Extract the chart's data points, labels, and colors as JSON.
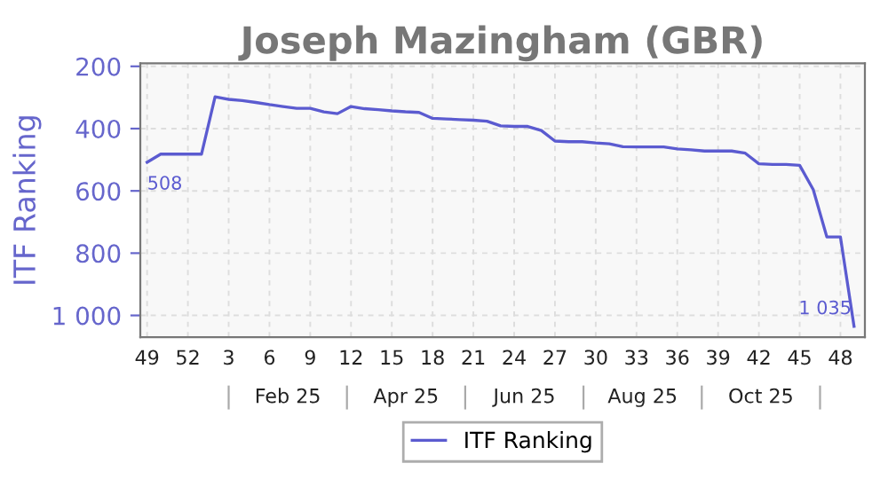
{
  "chart_data": {
    "type": "line",
    "title": "Joseph Mazingham (GBR)",
    "ylabel": "ITF Ranking",
    "categories": [
      "49",
      null,
      null,
      "52",
      null,
      null,
      "3",
      null,
      null,
      "6",
      null,
      null,
      "9",
      null,
      null,
      "12",
      null,
      null,
      "15",
      null,
      null,
      "18",
      null,
      null,
      "21",
      null,
      null,
      "24",
      null,
      null,
      "27",
      null,
      null,
      "30",
      null,
      null,
      "33",
      null,
      null,
      "36",
      null,
      null,
      "39",
      null,
      null,
      "42",
      null,
      null,
      "45",
      null,
      null,
      "48",
      null
    ],
    "series": [
      {
        "name": "ITF Ranking",
        "color": "#5b5bd0",
        "values": [
          508,
          482,
          482,
          482,
          482,
          298,
          306,
          310,
          316,
          323,
          329,
          335,
          335,
          346,
          352,
          329,
          336,
          339,
          343,
          346,
          348,
          367,
          369,
          371,
          373,
          376,
          391,
          393,
          393,
          406,
          440,
          442,
          442,
          446,
          449,
          458,
          459,
          459,
          459,
          465,
          468,
          472,
          472,
          472,
          479,
          513,
          515,
          515,
          518,
          596,
          748,
          748,
          1035
        ],
        "value_labels": [
          "508",
          null,
          null,
          null,
          null,
          null,
          null,
          null,
          null,
          null,
          null,
          null,
          null,
          null,
          null,
          null,
          null,
          null,
          null,
          null,
          null,
          null,
          null,
          null,
          null,
          null,
          null,
          null,
          null,
          null,
          null,
          null,
          null,
          null,
          null,
          null,
          null,
          null,
          null,
          null,
          null,
          null,
          null,
          null,
          null,
          null,
          null,
          null,
          null,
          null,
          null,
          null,
          "1 035"
        ]
      }
    ],
    "ylim": [
      1070,
      190
    ],
    "yticks": [
      200,
      400,
      600,
      800,
      {
        "value": 1000,
        "label": "1 000"
      }
    ],
    "annotations": [
      "Feb 25",
      "Apr 25",
      "Jun 25",
      "Aug 25",
      "Oct 25"
    ],
    "grid": true,
    "legend": "bottom",
    "marker": "none",
    "line_style": "solid"
  }
}
